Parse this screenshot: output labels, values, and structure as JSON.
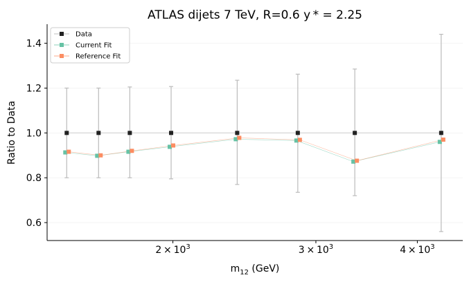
{
  "chart_data": {
    "type": "scatter",
    "title": "ATLAS dijets 7 TeV, R=0.6 y$*$ = 2.25",
    "title_display": "ATLAS dijets 7 TeV, R=0.6 y * = 2.25",
    "xlabel": "m12 (GeV)",
    "xlabel_main": "m",
    "xlabel_sub": "12",
    "xlabel_rest": " (GeV)",
    "ylabel": "Ratio to Data",
    "x_scale": "log",
    "xlim": [
      1400,
      4550
    ],
    "ylim": [
      0.52,
      1.485
    ],
    "x_ticks": [
      {
        "value": 2000,
        "base": "2 × 10",
        "exp": "3"
      },
      {
        "value": 3000,
        "base": "3 × 10",
        "exp": "3"
      },
      {
        "value": 4000,
        "base": "4 × 10",
        "exp": "3"
      }
    ],
    "y_ticks": [
      0.6,
      0.8,
      1.0,
      1.2,
      1.4
    ],
    "grid": true,
    "legend_position": "top-left",
    "x": [
      1480,
      1620,
      1770,
      1990,
      2400,
      2850,
      3350,
      4280
    ],
    "series": [
      {
        "name": "Data",
        "color": "#222222",
        "values": [
          1.0,
          1.0,
          1.0,
          1.0,
          1.0,
          1.0,
          1.0,
          1.0
        ],
        "err_low": [
          0.8,
          0.8,
          0.8,
          0.795,
          0.77,
          0.735,
          0.72,
          0.56
        ],
        "err_high": [
          1.2,
          1.2,
          1.205,
          1.207,
          1.235,
          1.262,
          1.285,
          1.44
        ]
      },
      {
        "name": "Current Fit",
        "color": "#66c2a5",
        "values": [
          0.913,
          0.898,
          0.916,
          0.938,
          0.972,
          0.966,
          0.872,
          0.96
        ]
      },
      {
        "name": "Reference Fit",
        "color": "#fc8d62",
        "values": [
          0.916,
          0.9,
          0.92,
          0.944,
          0.978,
          0.969,
          0.876,
          0.97
        ]
      }
    ]
  }
}
